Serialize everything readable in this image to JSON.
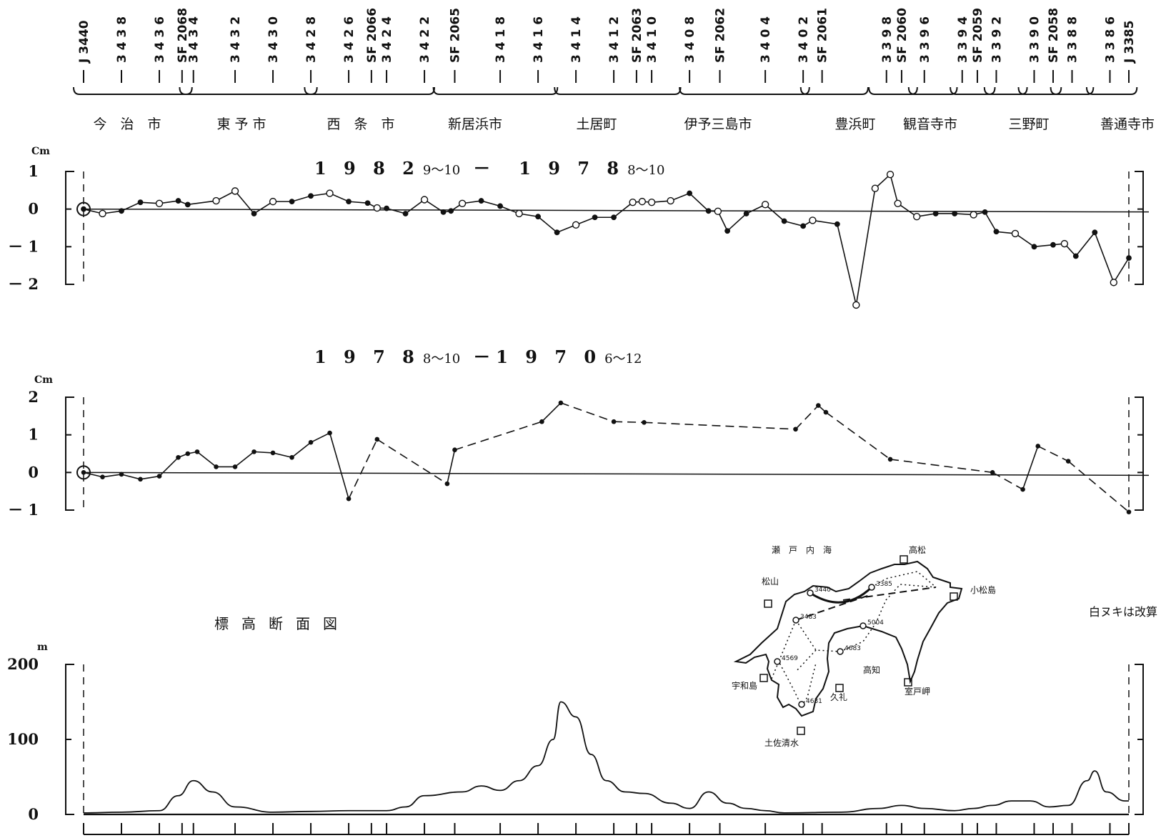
{
  "benchmarks": [
    {
      "label": "J 3440",
      "x": 0
    },
    {
      "label": "3 4 3 8",
      "x": 2
    },
    {
      "label": "3 4 3 6",
      "x": 4
    },
    {
      "label": "SF 2068",
      "x": 5.2
    },
    {
      "label": "3 4 3 4",
      "x": 5.8
    },
    {
      "label": "3 4 3 2",
      "x": 8
    },
    {
      "label": "3 4 3 0",
      "x": 10
    },
    {
      "label": "3 4 2 8",
      "x": 12
    },
    {
      "label": "3 4 2 6",
      "x": 14
    },
    {
      "label": "SF 2066",
      "x": 15.2
    },
    {
      "label": "3 4 2 4",
      "x": 16
    },
    {
      "label": "3 4 2 2",
      "x": 18
    },
    {
      "label": "SF 2065",
      "x": 19.6
    },
    {
      "label": "3 4 1 8",
      "x": 22
    },
    {
      "label": "3 4 1 6",
      "x": 24
    },
    {
      "label": "3 4 1 4",
      "x": 26
    },
    {
      "label": "3 4 1 2",
      "x": 28
    },
    {
      "label": "SF 2063",
      "x": 29.2
    },
    {
      "label": "3 4 1 0",
      "x": 30
    },
    {
      "label": "3 4 0 8",
      "x": 32
    },
    {
      "label": "SF 2062",
      "x": 33.6
    },
    {
      "label": "3 4 0 4",
      "x": 36
    },
    {
      "label": "3 4 0 2",
      "x": 38
    },
    {
      "label": "SF 2061",
      "x": 39
    },
    {
      "label": "3 3 9 8",
      "x": 42.4
    },
    {
      "label": "SF 2060",
      "x": 43.2
    },
    {
      "label": "3 3 9 6",
      "x": 44.4
    },
    {
      "label": "3 3 9 4",
      "x": 46.4
    },
    {
      "label": "SF 2059",
      "x": 47.2
    },
    {
      "label": "3 3 9 2",
      "x": 48.2
    },
    {
      "label": "3 3 9 0",
      "x": 50.2
    },
    {
      "label": "SF 2058",
      "x": 51.2
    },
    {
      "label": "3 3 8 8",
      "x": 52.2
    },
    {
      "label": "3 3 8 6",
      "x": 54.2
    },
    {
      "label": "J 3385",
      "x": 55.2
    }
  ],
  "cities": [
    "今　治　市",
    "東 予 市",
    "西　条　市",
    "新居浜市",
    "土居町",
    "伊予三島市",
    "豊浜町",
    "観音寺市",
    "三野町",
    "善通寺市"
  ],
  "chart_data": [
    {
      "type": "line",
      "title": "1 9 8 2",
      "title_sub1": "9～10",
      "title_mid": "－　1 9 7 8",
      "title_sub2": "8～10",
      "ylabel": "Cm",
      "ylim": [
        -2,
        1
      ],
      "yticks": [
        "1",
        "0",
        "－ 1",
        "－ 2"
      ],
      "points": [
        [
          0,
          0
        ],
        [
          1,
          -0.12
        ],
        [
          2,
          -0.05
        ],
        [
          3,
          0.18
        ],
        [
          4,
          0.15
        ],
        [
          5,
          0.22
        ],
        [
          5.5,
          0.12
        ],
        [
          7,
          0.22
        ],
        [
          8,
          0.48
        ],
        [
          9,
          -0.12
        ],
        [
          10,
          0.2
        ],
        [
          11,
          0.2
        ],
        [
          12,
          0.35
        ],
        [
          13,
          0.42
        ],
        [
          14,
          0.2
        ],
        [
          15,
          0.16
        ],
        [
          15.5,
          0.03
        ],
        [
          16,
          0.02
        ],
        [
          17,
          -0.12
        ],
        [
          18,
          0.25
        ],
        [
          19,
          -0.08
        ],
        [
          19.4,
          -0.05
        ],
        [
          20,
          0.15
        ],
        [
          21,
          0.22
        ],
        [
          22,
          0.08
        ],
        [
          23,
          -0.12
        ],
        [
          24,
          -0.2
        ],
        [
          25,
          -0.62
        ],
        [
          26,
          -0.42
        ],
        [
          27,
          -0.22
        ],
        [
          28,
          -0.22
        ],
        [
          29,
          0.18
        ],
        [
          29.5,
          0.2
        ],
        [
          30,
          0.18
        ],
        [
          31,
          0.22
        ],
        [
          32,
          0.42
        ],
        [
          33,
          -0.05
        ],
        [
          33.5,
          -0.06
        ],
        [
          34,
          -0.58
        ],
        [
          35,
          -0.12
        ],
        [
          36,
          0.12
        ],
        [
          37,
          -0.32
        ],
        [
          38,
          -0.45
        ],
        [
          38.5,
          -0.3
        ],
        [
          39.8,
          -0.4
        ],
        [
          40.8,
          -2.55
        ],
        [
          41.8,
          0.55
        ],
        [
          42.6,
          0.92
        ],
        [
          43,
          0.15
        ],
        [
          44,
          -0.2
        ],
        [
          45,
          -0.12
        ],
        [
          46,
          -0.12
        ],
        [
          47,
          -0.15
        ],
        [
          47.6,
          -0.08
        ],
        [
          48.2,
          -0.6
        ],
        [
          49.2,
          -0.65
        ],
        [
          50.2,
          -1.0
        ],
        [
          51.2,
          -0.95
        ],
        [
          51.8,
          -0.92
        ],
        [
          52.4,
          -1.25
        ],
        [
          53.4,
          -0.62
        ],
        [
          54.4,
          -1.95
        ],
        [
          55.2,
          -1.3
        ]
      ],
      "open_markers_from": [
        7,
        8
      ],
      "reference": 0
    },
    {
      "type": "line",
      "title": "1 9 7 8",
      "title_sub1": "8～10",
      "title_mid": "－1 9 7 0",
      "title_sub2": "6～12",
      "ylabel": "Cm",
      "ylim": [
        -1,
        2
      ],
      "yticks": [
        "2",
        "1",
        "0",
        "－ 1"
      ],
      "points": [
        [
          0,
          0
        ],
        [
          1,
          -0.12
        ],
        [
          2,
          -0.05
        ],
        [
          3,
          -0.18
        ],
        [
          4,
          -0.1
        ],
        [
          5,
          0.4
        ],
        [
          5.5,
          0.5
        ],
        [
          6,
          0.55
        ],
        [
          7,
          0.15
        ],
        [
          8,
          0.15
        ],
        [
          9,
          0.55
        ],
        [
          10,
          0.52
        ],
        [
          11,
          0.4
        ],
        [
          12,
          0.8
        ],
        [
          13,
          1.05
        ],
        [
          14,
          -0.7
        ],
        [
          15.5,
          0.88
        ],
        [
          19.2,
          -0.3
        ],
        [
          19.6,
          0.6
        ],
        [
          24.2,
          1.35
        ],
        [
          25.2,
          1.85
        ],
        [
          28,
          1.35
        ],
        [
          29.6,
          1.33
        ],
        [
          37.6,
          1.15
        ],
        [
          38.8,
          1.78
        ],
        [
          39.2,
          1.6
        ],
        [
          42.6,
          0.35
        ],
        [
          48,
          0.0
        ],
        [
          49.6,
          -0.45
        ],
        [
          50.4,
          0.7
        ],
        [
          52,
          0.3
        ],
        [
          55.2,
          -1.05
        ]
      ],
      "reference": 0
    },
    {
      "type": "area",
      "title": "標高断面図",
      "ylabel": "m",
      "ylim": [
        0,
        200
      ],
      "yticks": [
        "200",
        "100",
        "0"
      ],
      "points": [
        [
          0,
          2
        ],
        [
          2,
          3
        ],
        [
          4,
          5
        ],
        [
          5,
          25
        ],
        [
          5.8,
          45
        ],
        [
          6.8,
          30
        ],
        [
          8,
          10
        ],
        [
          10,
          3
        ],
        [
          12,
          4
        ],
        [
          14,
          5
        ],
        [
          16,
          5
        ],
        [
          17,
          10
        ],
        [
          18,
          25
        ],
        [
          20,
          30
        ],
        [
          21,
          38
        ],
        [
          22,
          32
        ],
        [
          23,
          45
        ],
        [
          24,
          65
        ],
        [
          24.8,
          100
        ],
        [
          25.2,
          150
        ],
        [
          26,
          130
        ],
        [
          26.8,
          80
        ],
        [
          27.6,
          45
        ],
        [
          28.6,
          30
        ],
        [
          29.6,
          28
        ],
        [
          31,
          15
        ],
        [
          32,
          8
        ],
        [
          33,
          30
        ],
        [
          34,
          15
        ],
        [
          35,
          8
        ],
        [
          36,
          5
        ],
        [
          37,
          2
        ],
        [
          40,
          3
        ],
        [
          42,
          8
        ],
        [
          43.2,
          12
        ],
        [
          44.4,
          8
        ],
        [
          46,
          5
        ],
        [
          47,
          8
        ],
        [
          48,
          12
        ],
        [
          49,
          18
        ],
        [
          50,
          18
        ],
        [
          51,
          10
        ],
        [
          52,
          12
        ],
        [
          53,
          45
        ],
        [
          53.4,
          58
        ],
        [
          54,
          30
        ],
        [
          55,
          18
        ],
        [
          55.2,
          18
        ]
      ]
    }
  ],
  "map": {
    "labels": {
      "seto": "瀬　戸　内　海",
      "takamatsu": "高松",
      "matsuyama": "松山",
      "komatsushima": "小松島",
      "uwajima": "宇和島",
      "kochi": "高知",
      "kure": "久礼",
      "muroto": "室戸岬",
      "tosashimizu": "土佐清水"
    },
    "numbers": [
      "3440",
      "3385",
      "3483",
      "5004",
      "4683",
      "4569",
      "4631"
    ]
  },
  "note": "白ヌキは改算"
}
